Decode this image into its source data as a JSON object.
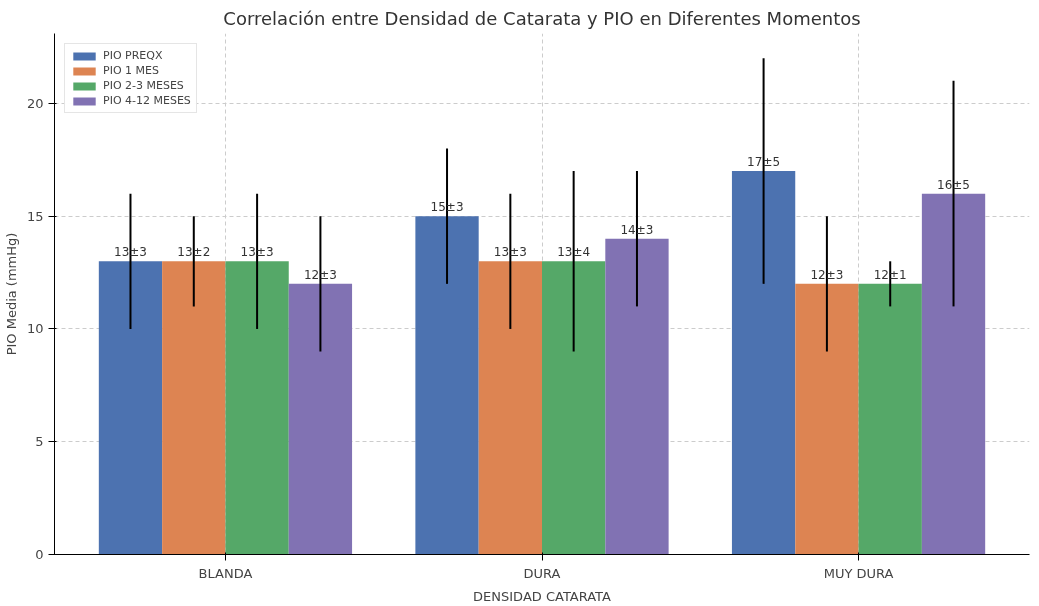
{
  "chart_data": {
    "type": "bar",
    "title": "Correlación entre Densidad de Catarata y PIO en Diferentes Momentos",
    "xlabel": "DENSIDAD CATARATA",
    "ylabel": "PIO Media (mmHg)",
    "categories": [
      "BLANDA",
      "DURA",
      "MUY DURA"
    ],
    "series": [
      {
        "name": "PIO PREQX",
        "color": "#4c72b0",
        "values": [
          13,
          15,
          17
        ],
        "errors": [
          3,
          3,
          5
        ],
        "value_labels": [
          "13±3",
          "15±3",
          "17±5"
        ]
      },
      {
        "name": "PIO 1 MES",
        "color": "#dd8452",
        "values": [
          13,
          13,
          12
        ],
        "errors": [
          2,
          3,
          3
        ],
        "value_labels": [
          "13±2",
          "13±3",
          "12±3"
        ]
      },
      {
        "name": "PIO 2-3 MESES",
        "color": "#55a868",
        "values": [
          13,
          13,
          12
        ],
        "errors": [
          3,
          4,
          1
        ],
        "value_labels": [
          "13±3",
          "13±4",
          "12±1"
        ]
      },
      {
        "name": "PIO 4-12 MESES",
        "color": "#8172b3",
        "values": [
          12,
          14,
          16
        ],
        "errors": [
          3,
          3,
          5
        ],
        "value_labels": [
          "12±3",
          "14±3",
          "16±5"
        ]
      }
    ],
    "ylim": [
      0,
      23.1
    ],
    "yticks": [
      0,
      5,
      10,
      15,
      20
    ],
    "grid": true,
    "legend": "top left"
  }
}
